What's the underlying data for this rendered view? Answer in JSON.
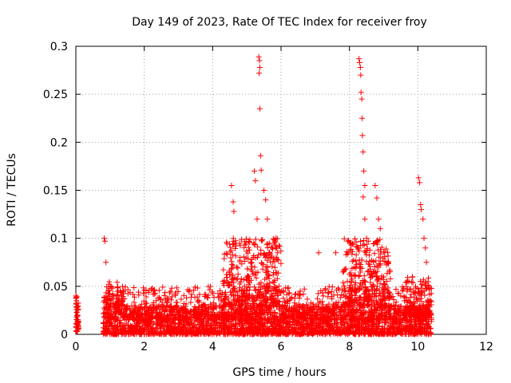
{
  "chart_data": {
    "type": "scatter",
    "title": "Day 149 of 2023, Rate Of TEC Index for receiver froy",
    "xlabel": "GPS time / hours",
    "ylabel": "ROTI / TECUs",
    "xlim": [
      0,
      12
    ],
    "ylim": [
      0,
      0.3
    ],
    "x_ticks": [
      0,
      2,
      4,
      6,
      8,
      10,
      12
    ],
    "x_tick_labels": [
      "0",
      "2",
      "4",
      "6",
      "8",
      "10",
      "12"
    ],
    "y_ticks": [
      0,
      0.05,
      0.1,
      0.15,
      0.2,
      0.25,
      0.3
    ],
    "y_tick_labels": [
      "0",
      "0.05",
      "0.1",
      "0.15",
      "0.2",
      "0.25",
      "0.3"
    ],
    "grid": true,
    "marker": "+",
    "color": "#ff0000",
    "notable_points": [
      {
        "x": 0.0,
        "y": 0.04
      },
      {
        "x": 0.02,
        "y": 0.035
      },
      {
        "x": 0.03,
        "y": 0.028
      },
      {
        "x": 0.05,
        "y": 0.02
      },
      {
        "x": 0.83,
        "y": 0.1
      },
      {
        "x": 0.85,
        "y": 0.097
      },
      {
        "x": 0.88,
        "y": 0.075
      },
      {
        "x": 4.55,
        "y": 0.155
      },
      {
        "x": 4.6,
        "y": 0.138
      },
      {
        "x": 4.62,
        "y": 0.128
      },
      {
        "x": 5.22,
        "y": 0.17
      },
      {
        "x": 5.25,
        "y": 0.16
      },
      {
        "x": 5.3,
        "y": 0.12
      },
      {
        "x": 5.35,
        "y": 0.289
      },
      {
        "x": 5.37,
        "y": 0.285
      },
      {
        "x": 5.38,
        "y": 0.278
      },
      {
        "x": 5.36,
        "y": 0.272
      },
      {
        "x": 5.38,
        "y": 0.235
      },
      {
        "x": 5.4,
        "y": 0.186
      },
      {
        "x": 5.42,
        "y": 0.171
      },
      {
        "x": 5.5,
        "y": 0.15
      },
      {
        "x": 5.55,
        "y": 0.14
      },
      {
        "x": 5.6,
        "y": 0.12
      },
      {
        "x": 5.85,
        "y": 0.1
      },
      {
        "x": 5.9,
        "y": 0.085
      },
      {
        "x": 7.1,
        "y": 0.085
      },
      {
        "x": 7.6,
        "y": 0.085
      },
      {
        "x": 8.05,
        "y": 0.093
      },
      {
        "x": 8.28,
        "y": 0.287
      },
      {
        "x": 8.3,
        "y": 0.283
      },
      {
        "x": 8.32,
        "y": 0.278
      },
      {
        "x": 8.33,
        "y": 0.27
      },
      {
        "x": 8.34,
        "y": 0.252
      },
      {
        "x": 8.36,
        "y": 0.245
      },
      {
        "x": 8.37,
        "y": 0.225
      },
      {
        "x": 8.38,
        "y": 0.207
      },
      {
        "x": 8.4,
        "y": 0.19
      },
      {
        "x": 8.42,
        "y": 0.17
      },
      {
        "x": 8.45,
        "y": 0.155
      },
      {
        "x": 8.4,
        "y": 0.143
      },
      {
        "x": 8.45,
        "y": 0.12
      },
      {
        "x": 8.5,
        "y": 0.1
      },
      {
        "x": 8.75,
        "y": 0.155
      },
      {
        "x": 8.8,
        "y": 0.142
      },
      {
        "x": 8.85,
        "y": 0.12
      },
      {
        "x": 8.9,
        "y": 0.11
      },
      {
        "x": 10.02,
        "y": 0.163
      },
      {
        "x": 10.05,
        "y": 0.158
      },
      {
        "x": 10.08,
        "y": 0.135
      },
      {
        "x": 10.1,
        "y": 0.13
      },
      {
        "x": 10.15,
        "y": 0.12
      },
      {
        "x": 10.18,
        "y": 0.1
      },
      {
        "x": 10.22,
        "y": 0.09
      },
      {
        "x": 10.25,
        "y": 0.075
      }
    ],
    "clusters": [
      {
        "x_range": [
          0.0,
          0.08
        ],
        "y_range": [
          0.003,
          0.04
        ],
        "count": 45
      },
      {
        "x_range": [
          0.8,
          10.4
        ],
        "y_range": [
          0.0,
          0.03
        ],
        "count": 2600
      },
      {
        "x_range": [
          0.8,
          10.4
        ],
        "y_range": [
          0.015,
          0.05
        ],
        "count": 900
      },
      {
        "x_range": [
          0.9,
          1.4
        ],
        "y_range": [
          0.03,
          0.055
        ],
        "count": 60
      },
      {
        "x_range": [
          4.3,
          6.0
        ],
        "y_range": [
          0.03,
          0.1
        ],
        "count": 350
      },
      {
        "x_range": [
          7.8,
          9.2
        ],
        "y_range": [
          0.03,
          0.1
        ],
        "count": 320
      },
      {
        "x_range": [
          9.6,
          10.4
        ],
        "y_range": [
          0.02,
          0.06
        ],
        "count": 120
      }
    ]
  }
}
